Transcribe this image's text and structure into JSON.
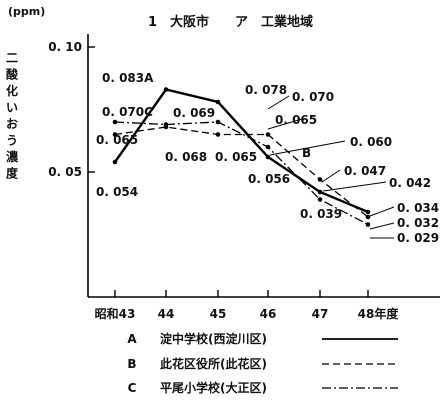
{
  "chart_data": {
    "type": "line",
    "title": "1　大阪市　　ア　工業地域",
    "unit": "(ppm)",
    "ylabel": "二酸化いおう濃度",
    "categories": [
      "昭和43",
      "44",
      "45",
      "46",
      "47",
      "48年度"
    ],
    "ylim": [
      0,
      0.1
    ],
    "yticks": [
      {
        "value": 0.1,
        "label": "0. 10"
      },
      {
        "value": 0.05,
        "label": "0. 05"
      }
    ],
    "series": [
      {
        "name": "淀中学校(西淀川区)",
        "letter": "A",
        "style": "solid",
        "values": [
          0.054,
          0.083,
          0.078,
          0.056,
          0.042,
          0.034
        ]
      },
      {
        "name": "此花区役所(此花区)",
        "letter": "B",
        "style": "dashed",
        "values": [
          0.065,
          0.068,
          0.065,
          0.065,
          0.047,
          0.032
        ]
      },
      {
        "name": "平尾小学校(大正区)",
        "letter": "C",
        "style": "dashdot",
        "values": [
          0.07,
          0.069,
          0.07,
          0.06,
          0.039,
          0.029
        ]
      }
    ],
    "annotations": [
      "0. 083A",
      "0. 078",
      "0. 070",
      "0. 070C",
      "0. 069",
      "0. 065",
      "0. 065",
      "0. 068",
      "0. 065",
      "0. 054",
      "0. 060",
      "B",
      "0. 056",
      "0. 047",
      "0. 042",
      "0. 039",
      "0. 034",
      "0. 032",
      "0. 029"
    ],
    "legend": [
      {
        "letter": "A",
        "label": "淀中学校(西淀川区)"
      },
      {
        "letter": "B",
        "label": "此花区役所(此花区)"
      },
      {
        "letter": "C",
        "label": "平尾小学校(大正区)"
      }
    ],
    "grid": false
  }
}
